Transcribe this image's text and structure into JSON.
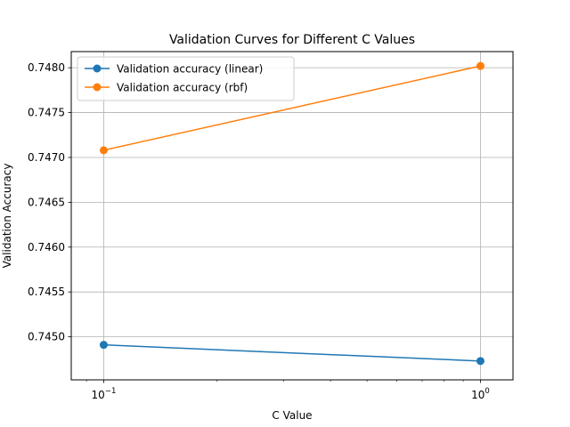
{
  "chart_data": {
    "type": "line",
    "title": "Validation Curves for Different C Values",
    "xlabel": "C Value",
    "ylabel": "Validation Accuracy",
    "x_scale": "log",
    "x": [
      0.1,
      1.0
    ],
    "x_tick_labels": [
      {
        "base": "10",
        "exp": "−1",
        "value": 0.1
      },
      {
        "base": "10",
        "exp": "0",
        "value": 1.0
      }
    ],
    "y_ticks": [
      0.745,
      0.7455,
      0.746,
      0.7465,
      0.747,
      0.7475,
      0.748
    ],
    "y_tick_labels": [
      "0.7450",
      "0.7455",
      "0.7460",
      "0.7465",
      "0.7470",
      "0.7475",
      "0.7480"
    ],
    "xlim": [
      0.082,
      1.22
    ],
    "ylim": [
      0.74452,
      0.74818
    ],
    "grid": true,
    "legend_position": "upper-left",
    "series": [
      {
        "name": "Validation accuracy (linear)",
        "color": "#1f77b4",
        "values": [
          0.74491,
          0.74473
        ]
      },
      {
        "name": "Validation accuracy (rbf)",
        "color": "#ff7f0e",
        "values": [
          0.74708,
          0.74802
        ]
      }
    ]
  }
}
